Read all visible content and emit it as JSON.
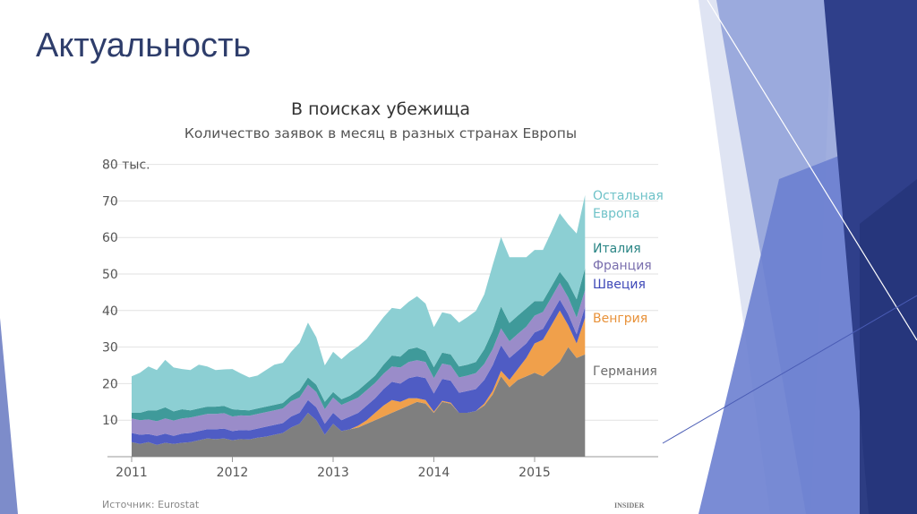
{
  "slide": {
    "title": "Актуальность"
  },
  "chart_data": {
    "type": "area",
    "stacked": true,
    "title": "В поисках убежища",
    "subtitle": "Количество заявок в месяц в разных странах Европы",
    "source": "Источник: Eurostat",
    "logo": "INSIDER",
    "x_ticks": [
      "2011",
      "2012",
      "2013",
      "2014",
      "2015"
    ],
    "y_ticks": [
      "10",
      "20",
      "30",
      "40",
      "50",
      "60",
      "70",
      "80 тыс."
    ],
    "ylim": [
      0,
      80
    ],
    "x": [
      2011.0,
      2011.083,
      2011.167,
      2011.25,
      2011.333,
      2011.417,
      2011.5,
      2011.583,
      2011.667,
      2011.75,
      2011.833,
      2011.917,
      2012.0,
      2012.083,
      2012.167,
      2012.25,
      2012.333,
      2012.417,
      2012.5,
      2012.583,
      2012.667,
      2012.75,
      2012.833,
      2012.917,
      2013.0,
      2013.083,
      2013.167,
      2013.25,
      2013.333,
      2013.417,
      2013.5,
      2013.583,
      2013.667,
      2013.75,
      2013.833,
      2013.917,
      2014.0,
      2014.083,
      2014.167,
      2014.25,
      2014.333,
      2014.417,
      2014.5,
      2014.583,
      2014.667,
      2014.75,
      2014.833,
      2014.917,
      2015.0,
      2015.083,
      2015.167,
      2015.25,
      2015.333,
      2015.417,
      2015.5
    ],
    "series": [
      {
        "name": "Германия",
        "color": "#7f7f7f",
        "label_color": "#6b6b6b",
        "values": [
          4,
          3.5,
          4,
          3.2,
          3.8,
          3.5,
          3.8,
          4,
          4.5,
          5,
          4.8,
          5,
          4.5,
          4.8,
          4.7,
          5.2,
          5.5,
          6,
          6.5,
          8,
          9,
          12,
          10,
          6,
          9,
          7,
          7.5,
          8,
          9,
          10,
          11,
          12,
          13,
          14,
          15,
          14.5,
          12,
          15,
          14.5,
          12,
          12,
          12.5,
          14,
          17,
          22,
          19,
          21,
          22,
          23,
          22,
          24,
          26,
          30,
          27,
          28
        ]
      },
      {
        "name": "Венгрия",
        "color": "#f0a04b",
        "label_color": "#e8923a",
        "values": [
          0,
          0,
          0,
          0,
          0,
          0,
          0,
          0,
          0,
          0,
          0,
          0,
          0,
          0,
          0,
          0,
          0,
          0,
          0,
          0,
          0,
          0,
          0,
          0,
          0,
          0,
          0,
          0.5,
          1,
          2,
          3,
          3.5,
          2,
          2,
          1,
          1,
          0.3,
          0.3,
          0.3,
          0,
          0,
          0,
          0.5,
          1,
          1.5,
          2,
          3,
          5,
          8,
          10,
          12,
          14,
          6,
          4,
          10
        ]
      },
      {
        "name": "Швеция",
        "color": "#4f5cc4",
        "label_color": "#3e48b8",
        "values": [
          2.5,
          2.5,
          2.2,
          2.5,
          2.5,
          2.2,
          2.5,
          2.5,
          2.5,
          2.5,
          2.7,
          2.7,
          2.5,
          2.5,
          2.5,
          2.5,
          2.7,
          2.7,
          2.7,
          3,
          3,
          3.5,
          3.5,
          3,
          3,
          3,
          3.5,
          3.5,
          4,
          4,
          4.5,
          5,
          5,
          5.5,
          6,
          6,
          5,
          6,
          6,
          5.5,
          6,
          6,
          6.5,
          7,
          7,
          6,
          5,
          4,
          3,
          3,
          3,
          3,
          3,
          2.5,
          3
        ]
      },
      {
        "name": "Франция",
        "color": "#9a8cc9",
        "label_color": "#7a6fae",
        "values": [
          4,
          4,
          4,
          4,
          4.2,
          4.2,
          4.2,
          4.2,
          4.2,
          4.2,
          4.2,
          4.2,
          4,
          4,
          4,
          4,
          4,
          4,
          4,
          4.2,
          4.2,
          4.2,
          4.2,
          4,
          4.2,
          4.2,
          4.2,
          4.2,
          4.2,
          4.2,
          4.2,
          4.2,
          4.4,
          4.4,
          4.4,
          4.4,
          4.2,
          4.2,
          4.2,
          4.2,
          4.2,
          4.4,
          4.4,
          4.4,
          4.6,
          4.6,
          4.6,
          4.6,
          4.6,
          4.6,
          4.6,
          4.6,
          4.6,
          4.6,
          4.6
        ]
      },
      {
        "name": "Италия",
        "color": "#3f9a9a",
        "label_color": "#2a8585",
        "values": [
          1.5,
          2,
          2.5,
          3,
          3,
          2.5,
          2.5,
          2,
          2,
          2,
          2,
          2,
          2,
          1.5,
          1.5,
          1.5,
          1.5,
          1.5,
          1.5,
          1.5,
          2,
          2,
          2,
          2,
          1.5,
          1.5,
          1.5,
          2,
          2,
          2,
          2.5,
          3,
          3,
          3.5,
          3.5,
          3,
          3,
          3,
          3,
          3,
          3,
          3,
          4,
          5,
          6,
          5,
          5,
          5,
          4,
          3,
          3,
          3,
          4,
          5,
          6
        ]
      },
      {
        "name": "Остальная Европа",
        "color": "#8ccfd3",
        "label_color": "#6ec2c8",
        "values": [
          10,
          11,
          12,
          11,
          13,
          12,
          11,
          11,
          12,
          11,
          10,
          10,
          11,
          10,
          9,
          9,
          10,
          11,
          11,
          12,
          13,
          15,
          13,
          10,
          11,
          11,
          12,
          12,
          12,
          13,
          13,
          13,
          13,
          13,
          14,
          13,
          11,
          11,
          11,
          12,
          13,
          14,
          15,
          18,
          19,
          18,
          16,
          14,
          14,
          14,
          15,
          16,
          16,
          18,
          20
        ]
      }
    ],
    "legend_placement": "right, labels at series ends"
  }
}
